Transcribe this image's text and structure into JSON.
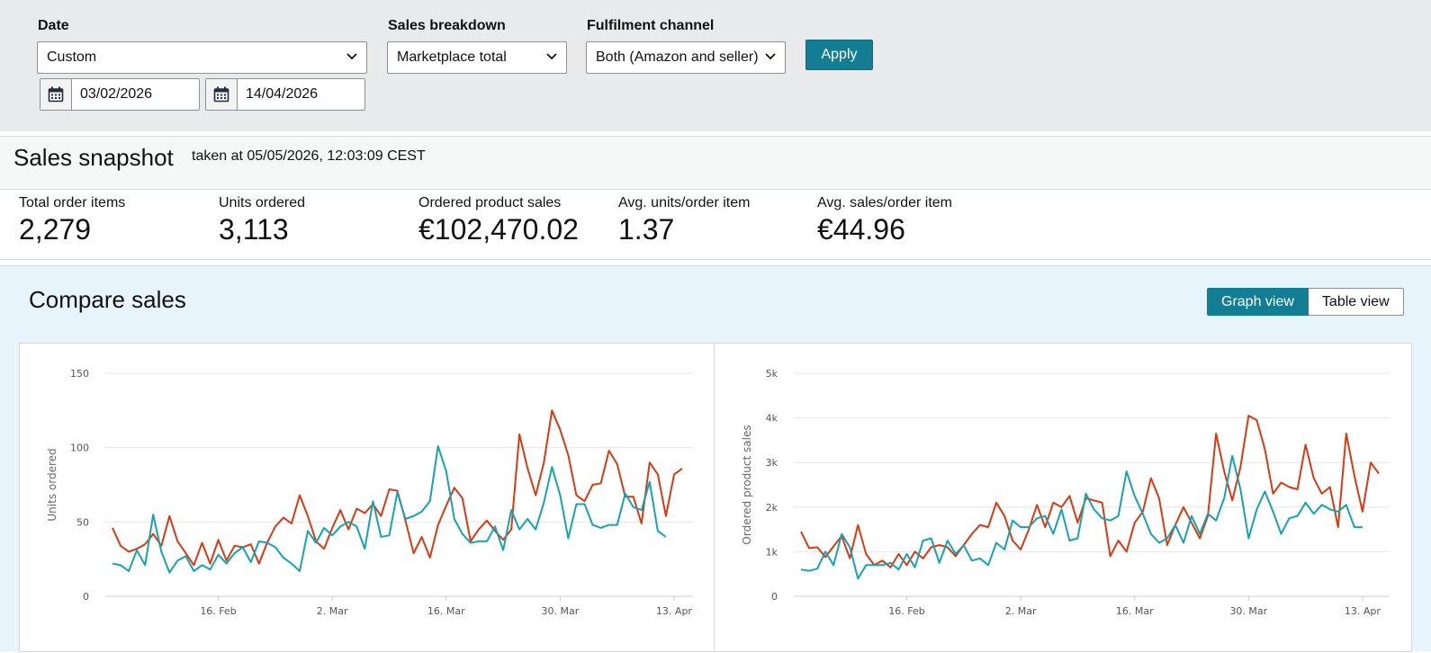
{
  "filters": {
    "date": {
      "label": "Date",
      "value": "Custom"
    },
    "start_date": "03/02/2026",
    "end_date": "14/04/2026",
    "sales_breakdown": {
      "label": "Sales breakdown",
      "value": "Marketplace total"
    },
    "fulfilment_channel": {
      "label": "Fulfilment channel",
      "value": "Both (Amazon and seller)"
    },
    "apply_label": "Apply"
  },
  "snapshot": {
    "title": "Sales snapshot",
    "taken": "taken at 05/05/2026, 12:03:09 CEST",
    "metrics": [
      {
        "label": "Total order items",
        "value": "2,279"
      },
      {
        "label": "Units ordered",
        "value": "3,113"
      },
      {
        "label": "Ordered product sales",
        "value": "€102,470.02"
      },
      {
        "label": "Avg. units/order item",
        "value": "1.37"
      },
      {
        "label": "Avg. sales/order item",
        "value": "€44.96"
      }
    ]
  },
  "compare": {
    "title": "Compare sales",
    "graph_view_label": "Graph view",
    "table_view_label": "Table view"
  },
  "colors": {
    "accent": "#137e93",
    "series_red": "#d83a12",
    "series_teal": "#17a2b0"
  },
  "chart_data": [
    {
      "type": "line",
      "ylabel": "Units ordered",
      "ylim": [
        0,
        150
      ],
      "yticks": [
        "0",
        "50",
        "100",
        "150"
      ],
      "xtick_labels": [
        "16. Feb",
        "2. Mar",
        "16. Mar",
        "30. Mar",
        "13. Apr"
      ],
      "xtick_index": [
        13,
        27,
        41,
        55,
        69
      ],
      "series": [
        {
          "color": "#d83a12",
          "values": [
            46,
            34,
            30,
            32,
            35,
            42,
            34,
            54,
            37,
            29,
            21,
            36,
            22,
            38,
            24,
            34,
            33,
            35,
            22,
            36,
            47,
            53,
            49,
            68,
            54,
            37,
            32,
            46,
            58,
            45,
            59,
            56,
            62,
            54,
            72,
            71,
            51,
            29,
            40,
            26,
            48,
            61,
            73,
            66,
            37,
            45,
            51,
            44,
            38,
            45,
            109,
            86,
            68,
            90,
            125,
            112,
            95,
            68,
            64,
            75,
            76,
            98,
            89,
            67,
            67,
            49,
            90,
            82,
            54,
            82,
            86
          ]
        },
        {
          "color": "#17a2b0",
          "values": [
            22,
            21,
            17,
            31,
            21,
            55,
            30,
            16,
            24,
            27,
            17,
            21,
            18,
            28,
            22,
            29,
            33,
            23,
            37,
            36,
            33,
            26,
            22,
            17,
            44,
            36,
            46,
            41,
            47,
            50,
            47,
            32,
            64,
            40,
            41,
            70,
            52,
            54,
            57,
            64,
            101,
            84,
            52,
            42,
            36,
            37,
            37,
            47,
            31,
            58,
            45,
            52,
            45,
            63,
            87,
            68,
            39,
            62,
            62,
            48,
            46,
            48,
            48,
            69,
            60,
            58,
            77,
            44,
            40
          ]
        }
      ]
    },
    {
      "type": "line",
      "ylabel": "Ordered product sales",
      "ylim": [
        0,
        5000
      ],
      "yticks": [
        "0",
        "1k",
        "2k",
        "3k",
        "4k",
        "5k"
      ],
      "xtick_labels": [
        "16. Feb",
        "2. Mar",
        "16. Mar",
        "30. Mar",
        "13. Apr"
      ],
      "xtick_index": [
        13,
        27,
        41,
        55,
        69
      ],
      "series": [
        {
          "color": "#d83a12",
          "values": [
            1450,
            1080,
            1100,
            880,
            1120,
            1350,
            850,
            1600,
            950,
            700,
            800,
            650,
            950,
            700,
            1000,
            850,
            1100,
            1150,
            1100,
            900,
            1150,
            1400,
            1600,
            1550,
            2100,
            1800,
            1250,
            1050,
            1500,
            2050,
            1550,
            2100,
            2000,
            2250,
            1650,
            2200,
            2150,
            2100,
            900,
            1250,
            1000,
            1650,
            1900,
            2650,
            2200,
            1150,
            1600,
            2000,
            1650,
            1300,
            1800,
            3650,
            2800,
            2150,
            2900,
            4050,
            3950,
            3300,
            2300,
            2550,
            2450,
            2400,
            3400,
            2650,
            2300,
            2450,
            1550,
            3650,
            2700,
            1900,
            3000,
            2750
          ]
        },
        {
          "color": "#17a2b0",
          "values": [
            600,
            570,
            620,
            1000,
            700,
            1400,
            1100,
            400,
            700,
            700,
            700,
            750,
            600,
            950,
            650,
            1250,
            1300,
            750,
            1250,
            950,
            1150,
            800,
            850,
            700,
            1200,
            1050,
            1700,
            1550,
            1550,
            1750,
            1800,
            1400,
            1950,
            1250,
            1300,
            2300,
            1950,
            1750,
            1700,
            1800,
            2800,
            2250,
            1850,
            1400,
            1200,
            1300,
            1600,
            1200,
            1800,
            1400,
            1850,
            1700,
            2200,
            3150,
            2400,
            1300,
            1950,
            2350,
            1900,
            1400,
            1750,
            1800,
            2100,
            1850,
            2050,
            1950,
            1900,
            2050,
            1550,
            1550
          ]
        }
      ]
    }
  ]
}
